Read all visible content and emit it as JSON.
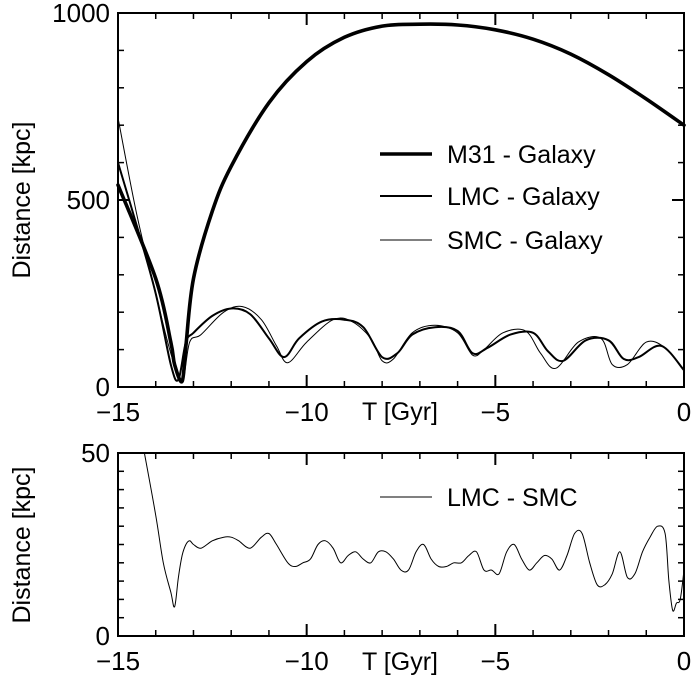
{
  "chart_data": [
    {
      "type": "line",
      "xlabel": "T [Gyr]",
      "ylabel": "Distance  [kpc]",
      "xlim": [
        -15,
        0
      ],
      "ylim": [
        0,
        1000
      ],
      "xticks": [
        -15,
        -10,
        -5,
        0
      ],
      "xtick_labels": [
        "−15",
        "−10",
        "−5",
        "0"
      ],
      "yticks": [
        0,
        500,
        1000
      ],
      "ytick_labels": [
        "0",
        "500",
        "1000"
      ],
      "grid": false,
      "legend_position": "right",
      "series": [
        {
          "name": "M31  - Galaxy",
          "line_weight": "thick",
          "x": [
            -15.0,
            -14.0,
            -13.6,
            -13.5,
            -13.3,
            -13.2,
            -13.0,
            -12.5,
            -12.0,
            -11.0,
            -10.0,
            -9.0,
            -8.0,
            -7.0,
            -6.0,
            -5.0,
            -4.0,
            -3.0,
            -2.0,
            -1.0,
            0.0
          ],
          "y": [
            540,
            290,
            120,
            60,
            15,
            110,
            290,
            470,
            590,
            760,
            870,
            935,
            965,
            970,
            968,
            955,
            930,
            890,
            835,
            770,
            700
          ]
        },
        {
          "name": "LMC - Galaxy",
          "line_weight": "medium",
          "x": [
            -15.0,
            -14.5,
            -14.0,
            -13.6,
            -13.4,
            -13.2,
            -13.0,
            -12.5,
            -12.0,
            -11.5,
            -11.0,
            -10.6,
            -10.2,
            -9.6,
            -9.0,
            -8.5,
            -8.0,
            -7.6,
            -7.2,
            -6.6,
            -6.0,
            -5.6,
            -5.2,
            -4.6,
            -4.0,
            -3.6,
            -3.2,
            -2.6,
            -2.0,
            -1.6,
            -1.2,
            -0.6,
            0.0
          ],
          "y": [
            600,
            430,
            250,
            60,
            20,
            120,
            145,
            190,
            210,
            195,
            130,
            80,
            130,
            175,
            180,
            160,
            80,
            90,
            140,
            160,
            150,
            90,
            105,
            140,
            145,
            95,
            70,
            125,
            125,
            75,
            80,
            110,
            45
          ]
        },
        {
          "name": "SMC - Galaxy",
          "line_weight": "thin",
          "x": [
            -15.0,
            -14.5,
            -14.0,
            -13.6,
            -13.3,
            -13.1,
            -12.8,
            -12.2,
            -11.7,
            -11.2,
            -10.8,
            -10.5,
            -10.0,
            -9.3,
            -8.8,
            -8.3,
            -8.0,
            -7.7,
            -7.2,
            -6.6,
            -6.0,
            -5.6,
            -5.3,
            -4.8,
            -4.2,
            -3.8,
            -3.4,
            -2.8,
            -2.2,
            -1.9,
            -1.5,
            -1.0,
            -0.5,
            0.0
          ],
          "y": [
            720,
            460,
            250,
            90,
            15,
            120,
            140,
            200,
            215,
            180,
            110,
            65,
            120,
            180,
            175,
            130,
            70,
            75,
            145,
            165,
            145,
            85,
            100,
            145,
            150,
            90,
            50,
            120,
            130,
            60,
            60,
            120,
            105,
            45
          ]
        }
      ]
    },
    {
      "type": "line",
      "xlabel": "T [Gyr]",
      "ylabel": "Distance  [kpc]",
      "xlim": [
        -15,
        0
      ],
      "ylim": [
        0,
        50
      ],
      "xticks": [
        -15,
        -10,
        -5,
        0
      ],
      "xtick_labels": [
        "−15",
        "−10",
        "−5",
        "0"
      ],
      "yticks": [
        0,
        50
      ],
      "ytick_labels": [
        "0",
        "50"
      ],
      "grid": false,
      "legend_position": "top-right",
      "series": [
        {
          "name": "LMC - SMC",
          "line_weight": "thin",
          "x": [
            -14.3,
            -14.0,
            -13.8,
            -13.6,
            -13.5,
            -13.4,
            -13.3,
            -13.2,
            -13.1,
            -13.0,
            -12.8,
            -12.5,
            -12.2,
            -12.0,
            -11.8,
            -11.5,
            -11.2,
            -11.0,
            -10.8,
            -10.5,
            -10.3,
            -10.1,
            -9.9,
            -9.7,
            -9.5,
            -9.3,
            -9.1,
            -8.9,
            -8.7,
            -8.5,
            -8.3,
            -8.1,
            -7.9,
            -7.7,
            -7.5,
            -7.3,
            -7.1,
            -6.9,
            -6.7,
            -6.5,
            -6.3,
            -6.1,
            -5.9,
            -5.7,
            -5.5,
            -5.3,
            -5.1,
            -4.9,
            -4.7,
            -4.5,
            -4.3,
            -4.1,
            -3.9,
            -3.7,
            -3.5,
            -3.3,
            -3.1,
            -2.9,
            -2.7,
            -2.5,
            -2.3,
            -2.1,
            -1.9,
            -1.7,
            -1.5,
            -1.3,
            -1.1,
            -0.9,
            -0.7,
            -0.5,
            -0.4,
            -0.3,
            -0.2,
            -0.1,
            0.0
          ],
          "y": [
            50,
            33,
            20,
            12,
            8,
            16,
            22,
            25,
            26,
            25,
            24,
            26,
            27,
            27,
            26,
            24,
            27,
            28,
            25,
            20,
            19,
            20,
            21,
            25,
            26,
            24,
            20,
            22,
            23,
            21,
            20,
            23,
            23,
            21,
            18,
            18,
            23,
            25,
            21,
            19,
            19,
            20,
            20,
            22,
            23,
            18,
            18,
            17,
            23,
            25,
            21,
            18,
            20,
            22,
            21,
            18,
            22,
            28,
            28,
            20,
            14,
            14,
            17,
            23,
            16,
            17,
            23,
            27,
            30,
            28,
            15,
            7,
            9,
            10,
            18
          ]
        }
      ]
    }
  ]
}
